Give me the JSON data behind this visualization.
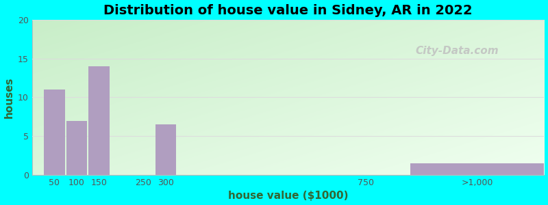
{
  "title": "Distribution of house value in Sidney, AR in 2022",
  "xlabel": "house value ($1000)",
  "ylabel": "houses",
  "bar_centers": [
    50,
    100,
    150,
    300,
    1000
  ],
  "bar_heights": [
    11,
    7,
    14,
    6.5,
    1.5
  ],
  "bar_widths": [
    47,
    47,
    47,
    47,
    300
  ],
  "tick_positions": [
    50,
    100,
    150,
    250,
    300,
    750,
    1000
  ],
  "tick_labels": [
    "50",
    "100",
    "150",
    "250",
    "300",
    "750",
    ">1,000"
  ],
  "bar_color": "#b09ec0",
  "bg_outer": "#00FFFF",
  "bg_plot_top_left": "#c8eec8",
  "bg_plot_bottom_right": "#f0fff0",
  "ylim": [
    0,
    20
  ],
  "yticks": [
    0,
    5,
    10,
    15,
    20
  ],
  "xlim": [
    0,
    1150
  ],
  "title_fontsize": 14,
  "axis_label_fontsize": 11,
  "watermark_text": "City-Data.com",
  "grid_color": "#dddddd",
  "axis_label_color": "#336633",
  "tick_color": "#555555"
}
